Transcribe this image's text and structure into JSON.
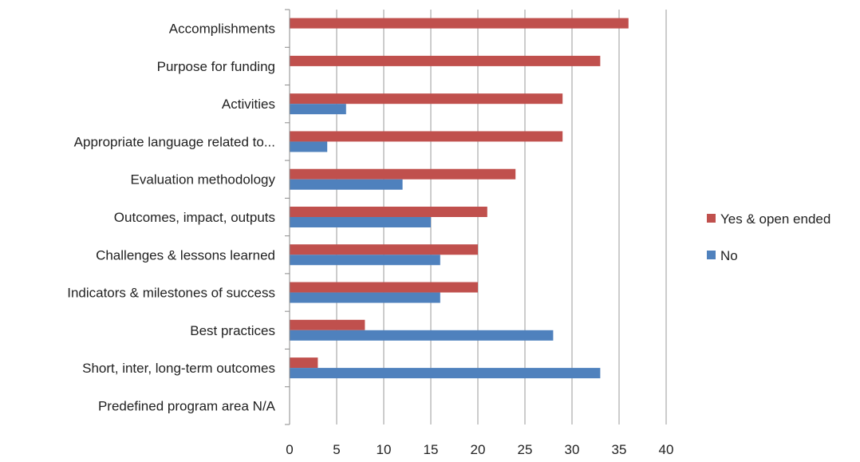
{
  "chart_data": {
    "type": "bar",
    "orientation": "horizontal",
    "categories": [
      "Accomplishments",
      "Purpose for funding",
      "Activities",
      "Appropriate language related to...",
      "Evaluation methodology",
      "Outcomes, impact, outputs",
      "Challenges & lessons learned",
      "Indicators & milestones of success",
      "Best practices",
      "Short, inter, long-term outcomes",
      "Predefined program area N/A"
    ],
    "series": [
      {
        "name": "Yes & open ended",
        "color": "#C0504D",
        "values": [
          36,
          33,
          29,
          29,
          24,
          21,
          20,
          20,
          8,
          3,
          0
        ]
      },
      {
        "name": "No",
        "color": "#4F81BD",
        "values": [
          0,
          0,
          6,
          4,
          12,
          15,
          16,
          16,
          28,
          33,
          0
        ]
      }
    ],
    "xlim": [
      0,
      40
    ],
    "xticks": [
      0,
      5,
      10,
      15,
      20,
      25,
      30,
      35,
      40
    ],
    "grid": "vertical",
    "legend": "right",
    "title": "",
    "xlabel": "",
    "ylabel": ""
  }
}
